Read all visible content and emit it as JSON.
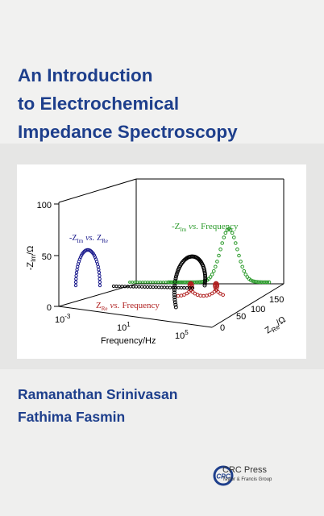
{
  "cover": {
    "title_lines": [
      "An Introduction",
      "to Electrochemical",
      "Impedance Spectroscopy"
    ],
    "authors": [
      "Ramanathan Srinivasan",
      "Fathima Fasmin"
    ],
    "publisher_name": "CRC Press",
    "publisher_sub": "Taylor & Francis Group",
    "logo_letters": "CRC",
    "colors": {
      "title": "#1e3f8c",
      "nyquist_series": "#1a1a8c",
      "imag_series": "#2a9a2a",
      "real_series": "#b02020",
      "spiral_series": "#000000",
      "logo": "#1e3f8c"
    }
  },
  "figure": {
    "z_axis_label": "-Z",
    "z_axis_sub": "Im",
    "z_axis_unit": "/Ω",
    "z_ticks": [
      "0",
      "50",
      "100"
    ],
    "freq_ticks": [
      {
        "base": "10",
        "exp": "-3"
      },
      {
        "base": "10",
        "exp": "1"
      },
      {
        "base": "10",
        "exp": "5"
      }
    ],
    "freq_label": "Frequency/Hz",
    "re_ticks": [
      "0",
      "50",
      "100",
      "150"
    ],
    "re_label_main": "Z",
    "re_label_sub": "Re",
    "re_label_unit": "/Ω",
    "nyquist_label": {
      "a": "-Z",
      "a_sub": "Im",
      "vs": "vs.",
      "b": "Z",
      "b_sub": "Re"
    },
    "imag_label": {
      "a": "-Z",
      "a_sub": "Im",
      "vs": "vs.",
      "b": "Frequency"
    },
    "real_label": {
      "a": "Z",
      "a_sub": "Re",
      "vs": "vs.",
      "b": "Frequency"
    }
  }
}
